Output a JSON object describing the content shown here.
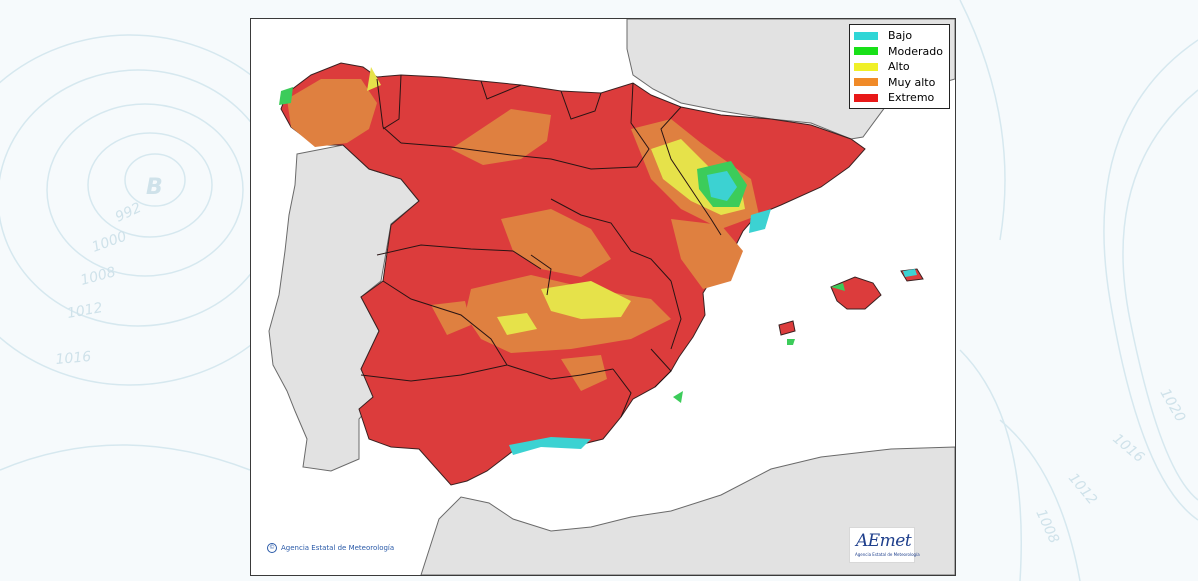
{
  "map": {
    "legend": [
      {
        "label": "Bajo",
        "color": "#2fd6d6"
      },
      {
        "label": "Moderado",
        "color": "#18e018"
      },
      {
        "label": "Alto",
        "color": "#f0f028"
      },
      {
        "label": "Muy alto",
        "color": "#f08a28"
      },
      {
        "label": "Extremo",
        "color": "#e81818"
      }
    ],
    "copyright": "Agencia Estatal de Meteorología",
    "logo": {
      "mark": "AEmet",
      "subtitle": "Agencia Estatal de Meteorología"
    },
    "colors": {
      "sea": "#ffffff",
      "land_other": "#e2e2e2",
      "extreme_fill": "#dc3c3c",
      "very_high_fill": "#df8040",
      "high_fill": "#e6e24a",
      "moderate_fill": "#3ccc5a",
      "low_fill": "#3cd2d2"
    }
  },
  "background": {
    "isobar_labels": [
      "992",
      "1000",
      "1008",
      "1012",
      "1016",
      "1020",
      "1016",
      "1012",
      "1008"
    ],
    "pressure_center": "B"
  }
}
